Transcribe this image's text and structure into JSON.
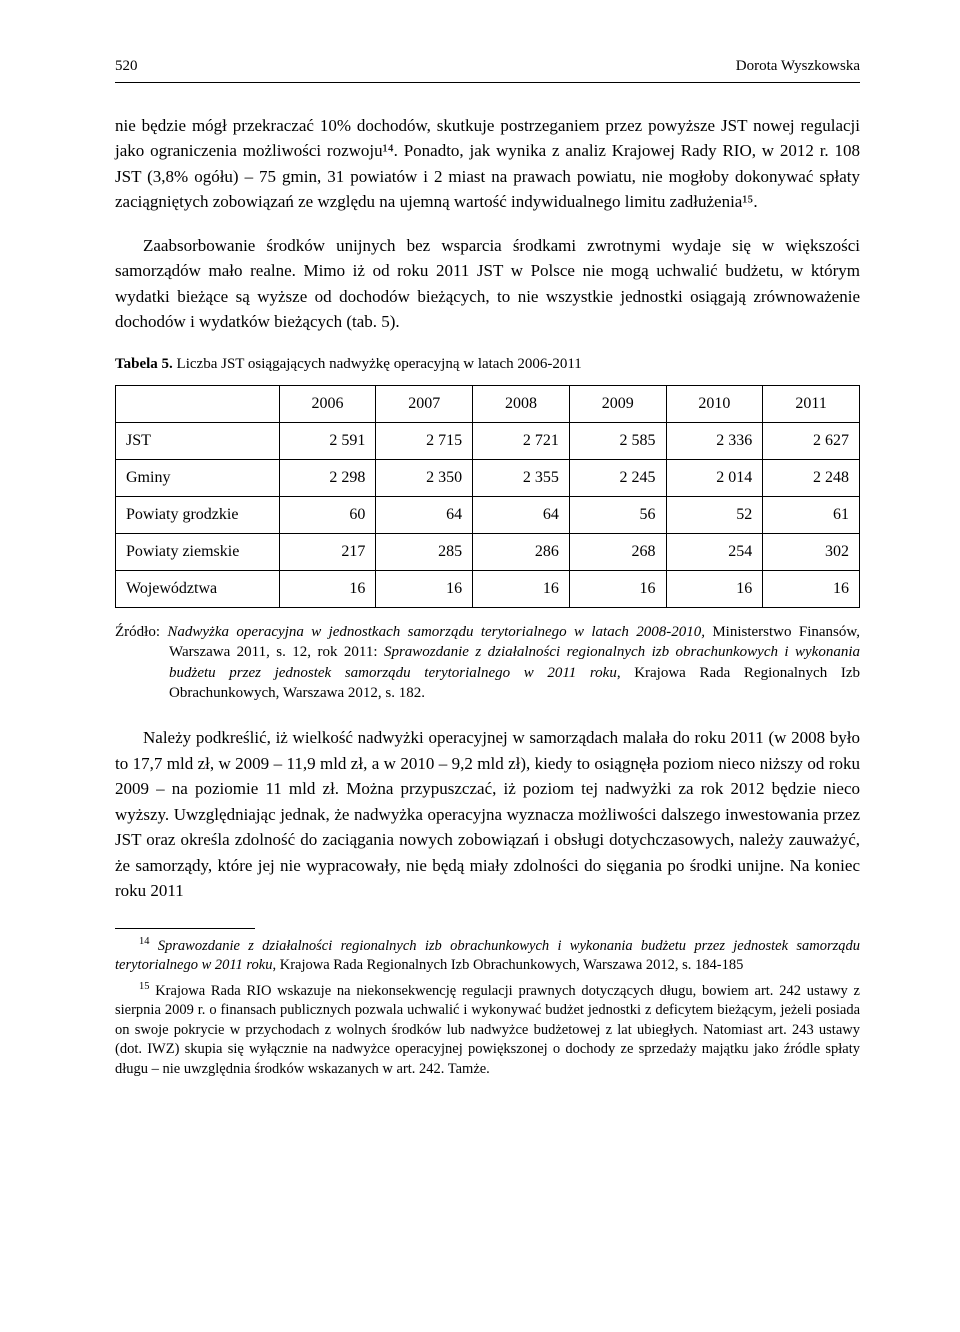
{
  "header": {
    "page_no": "520",
    "author": "Dorota Wyszkowska"
  },
  "paragraphs": {
    "p1": "nie będzie mógł przekraczać 10% dochodów, skutkuje postrzeganiem przez powyższe JST nowej regulacji jako ograniczenia możliwości rozwoju¹⁴. Ponadto, jak wynika z analiz Krajowej Rady RIO, w 2012 r. 108 JST (3,8% ogółu) – 75 gmin, 31 powiatów i 2 miast na prawach powiatu, nie mogłoby dokonywać spłaty zaciągniętych zobowiązań ze względu na ujemną wartość indywidualnego limitu zadłużenia¹⁵.",
    "p2": "Zaabsorbowanie środków unijnych bez wsparcia środkami zwrotnymi wydaje się w większości samorządów mało realne. Mimo iż od roku 2011 JST w Polsce nie mogą uchwalić budżetu, w którym wydatki bieżące są wyższe od dochodów bieżących, to nie wszystkie jednostki osiągają zrównoważenie dochodów i wydatków bieżących (tab. 5).",
    "p3": "Należy podkreślić, iż wielkość nadwyżki operacyjnej w samorządach malała do roku 2011 (w 2008 było to 17,7 mld zł, w 2009 – 11,9 mld zł, a w 2010 – 9,2 mld zł), kiedy to osiągnęła poziom nieco niższy od roku 2009 – na poziomie 11 mld zł. Można przypuszczać, iż poziom tej nadwyżki za rok 2012 będzie nieco wyższy. Uwzględniając jednak, że nadwyżka operacyjna wyznacza możliwości dalszego inwestowania przez JST oraz określa zdolność do zaciągania nowych zobowiązań i obsługi dotychczasowych, należy zauważyć, że samorządy, które jej nie wypracowały, nie będą miały zdolności do sięgania po środki unijne. Na koniec roku 2011"
  },
  "table": {
    "caption_bold": "Tabela 5.",
    "caption_rest": " Liczba JST osiągających nadwyżkę operacyjną w latach 2006-2011",
    "columns": [
      "",
      "2006",
      "2007",
      "2008",
      "2009",
      "2010",
      "2011"
    ],
    "rows": [
      {
        "label": "JST",
        "values": [
          "2 591",
          "2 715",
          "2 721",
          "2 585",
          "2 336",
          "2 627"
        ]
      },
      {
        "label": "Gminy",
        "values": [
          "2 298",
          "2 350",
          "2 355",
          "2 245",
          "2 014",
          "2 248"
        ]
      },
      {
        "label": "Powiaty grodzkie",
        "values": [
          "60",
          "64",
          "64",
          "56",
          "52",
          "61"
        ]
      },
      {
        "label": "Powiaty ziemskie",
        "values": [
          "217",
          "285",
          "286",
          "268",
          "254",
          "302"
        ]
      },
      {
        "label": "Województwa",
        "values": [
          "16",
          "16",
          "16",
          "16",
          "16",
          "16"
        ]
      }
    ],
    "col_widths": [
      "22%",
      "13%",
      "13%",
      "13%",
      "13%",
      "13%",
      "13%"
    ]
  },
  "source": {
    "prefix": "Źródło: ",
    "italic1": "Nadwyżka operacyjna w jednostkach samorządu terytorialnego w latach 2008-2010,",
    "text1": " Ministerstwo Finansów, Warszawa 2011, s. 12, rok 2011: ",
    "italic2": "Sprawozdanie z działalności regionalnych izb obrachunkowych i wykonania budżetu przez jednostek samorządu terytorialnego w 2011 roku",
    "text2": ", Krajowa Rada Regionalnych Izb Obrachunkowych, Warszawa 2012, s. 182."
  },
  "footnotes": {
    "f14_sup": "14",
    "f14_italic": " Sprawozdanie z działalności regionalnych izb obrachunkowych i wykonania budżetu przez jednostek samorządu terytorialnego w 2011 roku",
    "f14_rest": ", Krajowa Rada Regionalnych Izb Obrachunkowych, Warszawa 2012, s. 184-185",
    "f15_sup": "15",
    "f15_text": " Krajowa Rada RIO wskazuje na niekonsekwencję regulacji prawnych dotyczących długu, bowiem art. 242 ustawy z sierpnia 2009 r. o finansach publicznych pozwala uchwalić i wykonywać budżet jednostki z deficytem bieżącym, jeżeli posiada on swoje pokrycie w przychodach z wolnych środków lub nadwyżce budżetowej z lat ubiegłych. Natomiast art. 243 ustawy (dot. IWZ) skupia się wyłącznie na nadwyżce operacyjnej powiększonej o dochody ze sprzedaży majątku jako źródle spłaty długu – nie uwzględnia środków wskazanych w art. 242. Tamże."
  }
}
